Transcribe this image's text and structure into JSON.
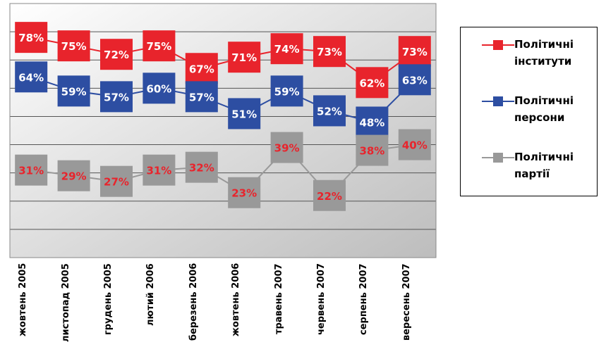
{
  "chart_data": {
    "type": "line",
    "categories": [
      "жовтень 2005",
      "листопад 2005",
      "грудень 2005",
      "лютий 2006",
      "березень 2006",
      "жовтень 2006",
      "травень 2007",
      "червень 2007",
      "серпень 2007",
      "вересень 2007"
    ],
    "series": [
      {
        "name": "Політичні інститути",
        "color": "#e8242c",
        "label_color": "#ffffff",
        "values": [
          78,
          75,
          72,
          75,
          67,
          71,
          74,
          73,
          62,
          73
        ],
        "value_labels": [
          "78%",
          "75%",
          "72%",
          "75%",
          "67%",
          "71%",
          "74%",
          "73%",
          "62%",
          "73%"
        ]
      },
      {
        "name": "Політичні персони",
        "color": "#2d4ea2",
        "label_color": "#ffffff",
        "values": [
          64,
          59,
          57,
          60,
          57,
          51,
          59,
          52,
          48,
          63
        ],
        "value_labels": [
          "64%",
          "59%",
          "57%",
          "60%",
          "57%",
          "51%",
          "59%",
          "52%",
          "48%",
          "63%"
        ]
      },
      {
        "name": "Політичні партії",
        "color": "#999999",
        "label_color": "#e8242c",
        "values": [
          31,
          29,
          27,
          31,
          32,
          23,
          39,
          22,
          38,
          40
        ],
        "value_labels": [
          "31%",
          "29%",
          "27%",
          "31%",
          "32%",
          "23%",
          "39%",
          "22%",
          "38%",
          "40%"
        ]
      }
    ],
    "ylim": [
      0,
      90
    ],
    "yticks": [
      0,
      10,
      20,
      30,
      40,
      50,
      60,
      70,
      80,
      90
    ],
    "grid": true,
    "legend": "right"
  }
}
